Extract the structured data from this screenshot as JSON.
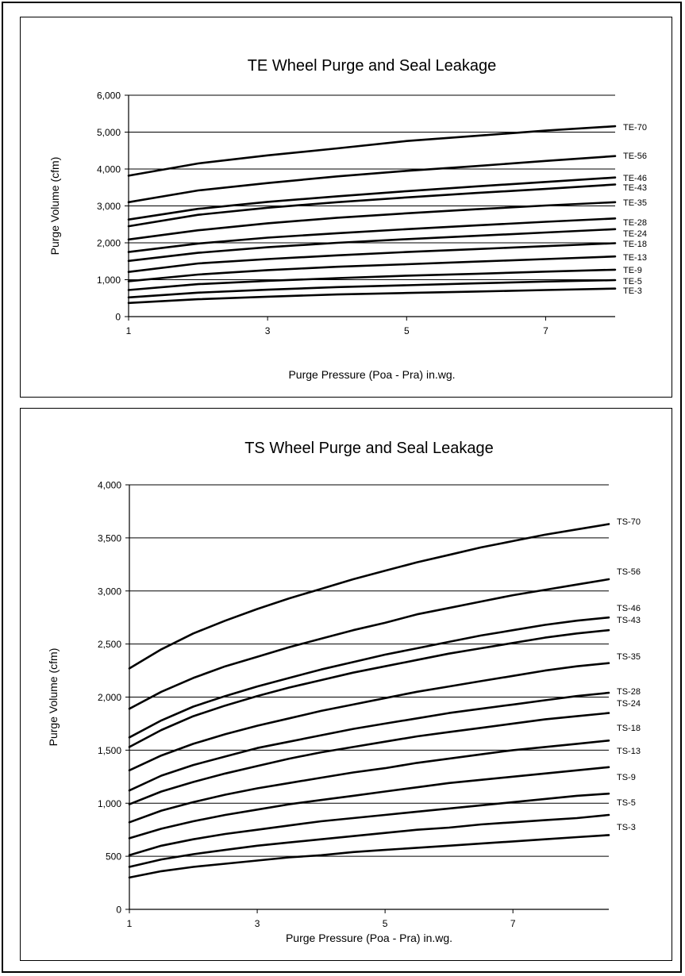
{
  "chart_data": [
    {
      "type": "line",
      "title": "TE Wheel Purge and Seal Leakage",
      "xlabel": "Purge Pressure (Poa - Pra) in.wg.",
      "ylabel": "Purge Volume (cfm)",
      "xlim": [
        1,
        8
      ],
      "ylim": [
        0,
        6000
      ],
      "x_ticks": [
        "1",
        "3",
        "5",
        "7"
      ],
      "y_ticks": [
        "0",
        "1,000",
        "2,000",
        "3,000",
        "4,000",
        "5,000",
        "6,000"
      ],
      "grid": "horizontal",
      "legend": "right (labels at line ends)",
      "x": [
        1,
        2,
        3,
        4,
        5,
        6,
        7,
        8
      ],
      "series": [
        {
          "name": "TE-70",
          "values": [
            3820,
            4150,
            4370,
            4560,
            4760,
            4900,
            5040,
            5160
          ]
        },
        {
          "name": "TE-56",
          "values": [
            3100,
            3420,
            3620,
            3800,
            3950,
            4080,
            4220,
            4350
          ]
        },
        {
          "name": "TE-46",
          "values": [
            2630,
            2920,
            3110,
            3260,
            3400,
            3530,
            3650,
            3770
          ]
        },
        {
          "name": "TE-43",
          "values": [
            2450,
            2760,
            2950,
            3100,
            3230,
            3350,
            3460,
            3580
          ]
        },
        {
          "name": "TE-35",
          "values": [
            2090,
            2340,
            2530,
            2680,
            2800,
            2910,
            3010,
            3100
          ]
        },
        {
          "name": "TE-28",
          "values": [
            1750,
            1980,
            2140,
            2260,
            2370,
            2470,
            2570,
            2660
          ]
        },
        {
          "name": "TE-24",
          "values": [
            1510,
            1730,
            1880,
            2000,
            2100,
            2190,
            2280,
            2370
          ]
        },
        {
          "name": "TE-18",
          "values": [
            1210,
            1440,
            1560,
            1660,
            1750,
            1830,
            1910,
            1990
          ]
        },
        {
          "name": "TE-13",
          "values": [
            960,
            1140,
            1260,
            1350,
            1420,
            1490,
            1560,
            1630
          ]
        },
        {
          "name": "TE-9",
          "values": [
            720,
            880,
            970,
            1040,
            1110,
            1160,
            1220,
            1270
          ]
        },
        {
          "name": "TE-5",
          "values": [
            520,
            650,
            730,
            800,
            850,
            900,
            950,
            990
          ]
        },
        {
          "name": "TE-3",
          "values": [
            370,
            470,
            540,
            600,
            640,
            680,
            720,
            760
          ]
        }
      ]
    },
    {
      "type": "line",
      "title": "TS Wheel Purge and Seal Leakage",
      "xlabel": "Purge Pressure (Poa - Pra) in.wg.",
      "ylabel": "Purge Volume (cfm)",
      "xlim": [
        1,
        8.5
      ],
      "ylim": [
        0,
        4000
      ],
      "x_ticks": [
        "1",
        "3",
        "5",
        "7"
      ],
      "y_ticks": [
        "0",
        "500",
        "1,000",
        "1,500",
        "2,000",
        "2,500",
        "3,000",
        "3,500",
        "4,000"
      ],
      "grid": "horizontal",
      "legend": "right (labels at line ends)",
      "x": [
        1,
        1.5,
        2,
        2.5,
        3,
        3.5,
        4,
        4.5,
        5,
        5.5,
        6,
        6.5,
        7,
        7.5,
        8,
        8.5
      ],
      "series": [
        {
          "name": "TS-70",
          "values": [
            2270,
            2450,
            2600,
            2720,
            2830,
            2930,
            3020,
            3110,
            3190,
            3270,
            3340,
            3410,
            3470,
            3530,
            3580,
            3630
          ]
        },
        {
          "name": "TS-56",
          "values": [
            1890,
            2050,
            2180,
            2290,
            2380,
            2470,
            2550,
            2630,
            2700,
            2780,
            2840,
            2900,
            2960,
            3010,
            3060,
            3110
          ]
        },
        {
          "name": "TS-46",
          "values": [
            1620,
            1780,
            1910,
            2010,
            2100,
            2180,
            2260,
            2330,
            2400,
            2460,
            2520,
            2580,
            2630,
            2680,
            2720,
            2750
          ]
        },
        {
          "name": "TS-43",
          "values": [
            1530,
            1690,
            1820,
            1920,
            2010,
            2090,
            2160,
            2230,
            2290,
            2350,
            2410,
            2460,
            2510,
            2560,
            2600,
            2630
          ]
        },
        {
          "name": "TS-35",
          "values": [
            1310,
            1450,
            1560,
            1650,
            1730,
            1800,
            1870,
            1930,
            1990,
            2050,
            2100,
            2150,
            2200,
            2250,
            2290,
            2320
          ]
        },
        {
          "name": "TS-28",
          "values": [
            1120,
            1260,
            1360,
            1440,
            1520,
            1580,
            1640,
            1700,
            1750,
            1800,
            1850,
            1890,
            1930,
            1970,
            2010,
            2040
          ]
        },
        {
          "name": "TS-24",
          "values": [
            990,
            1110,
            1200,
            1280,
            1350,
            1420,
            1480,
            1530,
            1580,
            1630,
            1670,
            1710,
            1750,
            1790,
            1820,
            1850
          ]
        },
        {
          "name": "TS-18",
          "values": [
            820,
            930,
            1010,
            1080,
            1140,
            1190,
            1240,
            1290,
            1330,
            1380,
            1420,
            1460,
            1500,
            1530,
            1560,
            1590
          ]
        },
        {
          "name": "TS-13",
          "values": [
            670,
            760,
            830,
            890,
            940,
            990,
            1030,
            1070,
            1110,
            1150,
            1190,
            1220,
            1250,
            1280,
            1310,
            1340
          ]
        },
        {
          "name": "TS-9",
          "values": [
            510,
            600,
            660,
            710,
            750,
            790,
            830,
            860,
            890,
            920,
            950,
            980,
            1010,
            1040,
            1070,
            1090
          ]
        },
        {
          "name": "TS-5",
          "values": [
            400,
            470,
            520,
            560,
            600,
            630,
            660,
            690,
            720,
            750,
            770,
            800,
            820,
            840,
            860,
            890
          ]
        },
        {
          "name": "TS-3",
          "values": [
            300,
            360,
            400,
            430,
            460,
            490,
            510,
            540,
            560,
            580,
            600,
            620,
            640,
            660,
            680,
            700
          ]
        }
      ]
    }
  ]
}
